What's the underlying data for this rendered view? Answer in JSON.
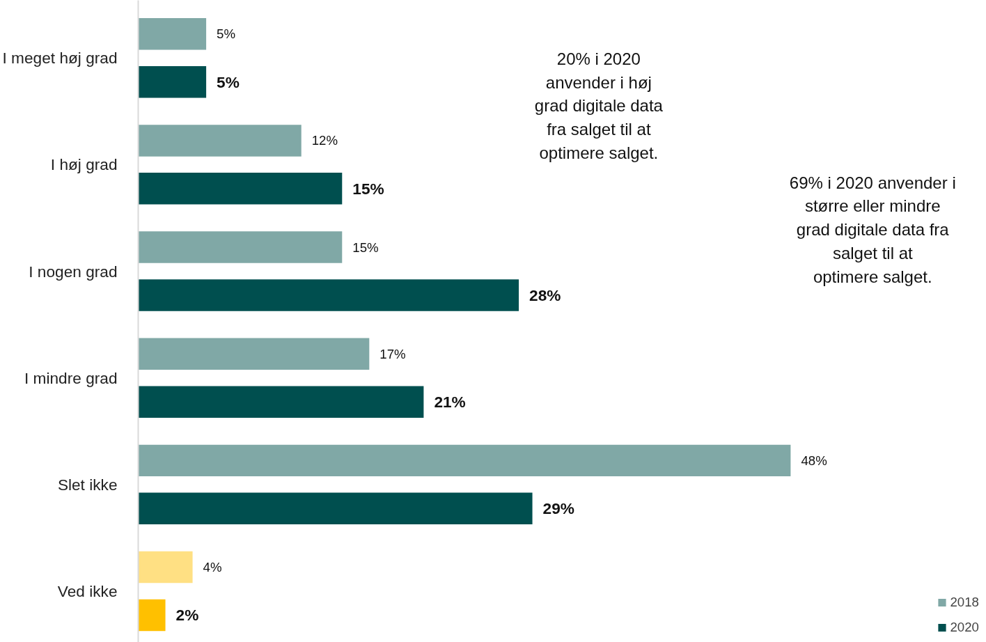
{
  "chart_data": {
    "type": "bar",
    "orientation": "horizontal",
    "categories": [
      "I meget høj grad",
      "I høj grad",
      "I nogen grad",
      "I mindre grad",
      "Slet ikke",
      "Ved ikke"
    ],
    "series": [
      {
        "name": "2018",
        "color": "#80a8a6",
        "colors": [
          "#80a8a6",
          "#80a8a6",
          "#80a8a6",
          "#80a8a6",
          "#80a8a6",
          "#ffe083"
        ],
        "values": [
          5,
          12,
          15,
          17,
          48,
          4
        ],
        "value_labels": [
          "5%",
          "12%",
          "15%",
          "17%",
          "48%",
          "4%"
        ]
      },
      {
        "name": "2020",
        "color": "#004f4f",
        "colors": [
          "#004f4f",
          "#004f4f",
          "#004f4f",
          "#004f4f",
          "#004f4f",
          "#ffc000"
        ],
        "values": [
          5,
          15,
          28,
          21,
          29,
          2
        ],
        "value_labels": [
          "5%",
          "15%",
          "28%",
          "21%",
          "29%",
          "2%"
        ]
      }
    ],
    "legend": "bottom right",
    "grid": false,
    "annotations": [
      "20% i 2020\nanvender i høj\ngrad digitale data\nfra salget til at\noptimere salget.",
      "69% i 2020 anvender i\nstørre eller mindre\ngrad digitale data fra\nsalget til at\noptimere salget."
    ]
  }
}
